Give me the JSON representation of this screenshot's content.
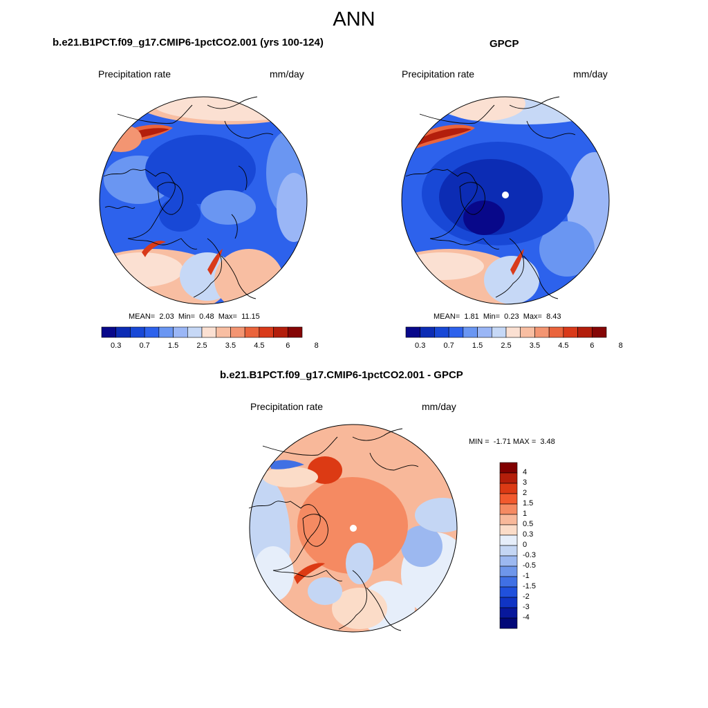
{
  "page": {
    "title": "ANN"
  },
  "panels": [
    {
      "id": "model",
      "title": "b.e21.B1PCT.f09_g17.CMIP6-1pctCO2.001 (yrs 100-124)",
      "left_label": "Precipitation rate",
      "right_label": "mm/day",
      "stats": {
        "mean_label": "MEAN=",
        "mean": "2.03",
        "min_label": "Min=",
        "min": "0.48",
        "max_label": "Max=",
        "max": "11.15"
      },
      "colorbar_ticks": [
        "0.3",
        "0.7",
        "1.5",
        "2.5",
        "3.5",
        "4.5",
        "6",
        "8"
      ]
    },
    {
      "id": "obs",
      "title": "GPCP",
      "left_label": "Precipitation rate",
      "right_label": "mm/day",
      "stats": {
        "mean_label": "MEAN=",
        "mean": "1.81",
        "min_label": "Min=",
        "min": "0.23",
        "max_label": "Max=",
        "max": "8.43"
      },
      "colorbar_ticks": [
        "0.3",
        "0.7",
        "1.5",
        "2.5",
        "3.5",
        "4.5",
        "6",
        "8"
      ]
    },
    {
      "id": "diff",
      "title": "b.e21.B1PCT.f09_g17.CMIP6-1pctCO2.001 - GPCP",
      "left_label": "Precipitation rate",
      "right_label": "mm/day",
      "stats": {
        "min_label": "MIN =",
        "min": "-1.71",
        "max_label": "MAX =",
        "max": "3.48"
      },
      "colorbar_ticks": [
        "4",
        "3",
        "2",
        "1.5",
        "1",
        "0.5",
        "0.3",
        "0",
        "-0.3",
        "-0.5",
        "-1",
        "-1.5",
        "-2",
        "-3",
        "-4"
      ]
    }
  ],
  "colors": {
    "precip_scale": [
      "#08088a",
      "#0c2cb4",
      "#1848d6",
      "#2d62ec",
      "#6a96f2",
      "#9ab6f6",
      "#c6d8f6",
      "#fbe0d2",
      "#f8bea2",
      "#f39572",
      "#ea643c",
      "#d93a1a",
      "#b31e0c",
      "#850606"
    ],
    "diff_scale": [
      "#800000",
      "#b41e0a",
      "#dc3a14",
      "#f25a2e",
      "#f58a62",
      "#f8b89a",
      "#fbdcc8",
      "#e6eefa",
      "#c4d6f4",
      "#9cb8f0",
      "#6e96ea",
      "#4070e4",
      "#2050dc",
      "#1034c4",
      "#08189c",
      "#020878"
    ]
  }
}
